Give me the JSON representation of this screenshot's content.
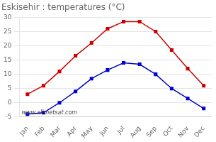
{
  "chart_data": {
    "type": "line",
    "title": "Eskisehir : temperatures (°C)",
    "categories": [
      "Jan",
      "Feb",
      "Mar",
      "Apr",
      "May",
      "Jun",
      "Jul",
      "Aug",
      "Sep",
      "Oct",
      "Nov",
      "Dec"
    ],
    "series": [
      {
        "color": "#cc0000",
        "values": [
          3.0,
          6.0,
          11.0,
          16.5,
          21.0,
          26.0,
          28.5,
          28.5,
          25.0,
          18.5,
          12.0,
          6.0
        ]
      },
      {
        "color": "#0000cc",
        "values": [
          -4.0,
          -3.5,
          0.0,
          4.0,
          8.5,
          11.5,
          14.0,
          13.5,
          10.0,
          5.0,
          1.5,
          -2.0
        ]
      }
    ],
    "marker": "square",
    "line_style": "solid",
    "ylim": [
      -5,
      30
    ],
    "yticks": [
      -5,
      0,
      5,
      10,
      15,
      20,
      25,
      30
    ],
    "grid": "y",
    "annotation": "www.allmetsat.com"
  }
}
